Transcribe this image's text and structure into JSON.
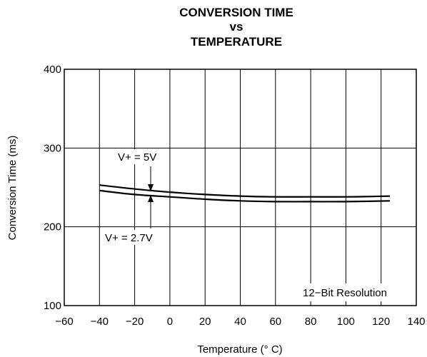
{
  "chart_data": {
    "type": "line",
    "title": [
      "CONVERSION TIME",
      "vs",
      "TEMPERATURE"
    ],
    "xlabel": "Temperature (° C)",
    "ylabel": "Conversion Time (ms)",
    "xlim": [
      -60,
      140
    ],
    "ylim": [
      100,
      400
    ],
    "x_ticks": [
      -60,
      -40,
      -20,
      0,
      20,
      40,
      60,
      80,
      100,
      120,
      140
    ],
    "x_tick_labels": [
      "−60",
      "−40",
      "−20",
      "0",
      "20",
      "40",
      "60",
      "80",
      "100",
      "120",
      "140"
    ],
    "y_ticks": [
      100,
      200,
      300,
      400
    ],
    "y_tick_labels": [
      "100",
      "200",
      "300",
      "400"
    ],
    "grid": true,
    "series": [
      {
        "name": "V+ = 5V",
        "x": [
          -40,
          -20,
          0,
          20,
          40,
          60,
          80,
          100,
          125
        ],
        "y": [
          253,
          248,
          244,
          241,
          239,
          238,
          238,
          238,
          239
        ]
      },
      {
        "name": "V+ = 2.7V",
        "x": [
          -40,
          -20,
          0,
          20,
          40,
          60,
          80,
          100,
          125
        ],
        "y": [
          246,
          241,
          238,
          235,
          233,
          232,
          232,
          232,
          233
        ]
      }
    ],
    "annotations": [
      {
        "text": "12−Bit Resolution"
      }
    ]
  }
}
